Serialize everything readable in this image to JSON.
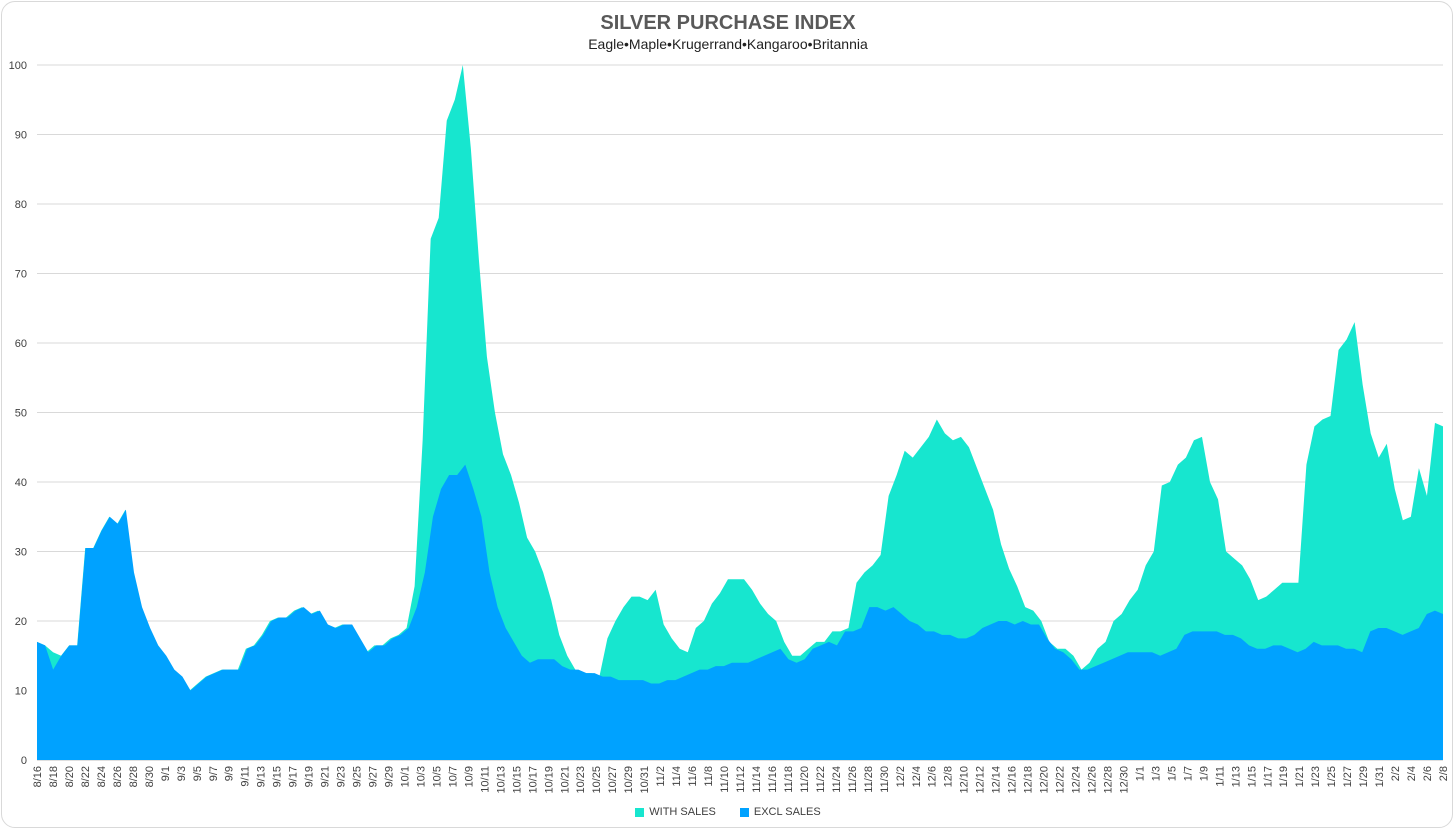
{
  "chart_data": {
    "type": "area",
    "title": "SILVER PURCHASE INDEX",
    "subtitle": "Eagle•Maple•Krugerrand•Kangaroo•Britannia",
    "ylim": [
      0,
      100
    ],
    "yticks": [
      0,
      10,
      20,
      30,
      40,
      50,
      60,
      70,
      80,
      90,
      100
    ],
    "grid": true,
    "legend_position": "bottom",
    "x_start": "8/16",
    "x_end": "2/8",
    "x_tick_labels": [
      "8/16",
      "8/18",
      "8/20",
      "8/22",
      "8/24",
      "8/26",
      "8/28",
      "8/30",
      "9/1",
      "9/3",
      "9/5",
      "9/7",
      "9/9",
      "9/11",
      "9/13",
      "9/15",
      "9/17",
      "9/19",
      "9/21",
      "9/23",
      "9/25",
      "9/27",
      "9/29",
      "10/1",
      "10/3",
      "10/5",
      "10/7",
      "10/9",
      "10/11",
      "10/13",
      "10/15",
      "10/17",
      "10/19",
      "10/21",
      "10/23",
      "10/25",
      "10/27",
      "10/29",
      "10/31",
      "11/2",
      "11/4",
      "11/6",
      "11/8",
      "11/10",
      "11/12",
      "11/14",
      "11/16",
      "11/18",
      "11/20",
      "11/22",
      "11/24",
      "11/26",
      "11/28",
      "11/30",
      "12/2",
      "12/4",
      "12/6",
      "12/8",
      "12/10",
      "12/12",
      "12/14",
      "12/16",
      "12/18",
      "12/20",
      "12/22",
      "12/24",
      "12/26",
      "12/28",
      "12/30",
      "1/1",
      "1/3",
      "1/5",
      "1/7",
      "1/9",
      "1/11",
      "1/13",
      "1/15",
      "1/17",
      "1/19",
      "1/21",
      "1/23",
      "1/25",
      "1/27",
      "1/29",
      "1/31",
      "2/2",
      "2/4",
      "2/6",
      "2/8"
    ],
    "series": [
      {
        "name": "WITH SALES",
        "color": "#17e6cf",
        "values": [
          17,
          16.5,
          15.5,
          15,
          16.5,
          16.5,
          30.5,
          30.5,
          33,
          35,
          34,
          36,
          27,
          22,
          19,
          16.5,
          15,
          13,
          12,
          10,
          11,
          12,
          12.5,
          13,
          13,
          13,
          16,
          16.5,
          18,
          20,
          20.5,
          20.5,
          21.5,
          22,
          21,
          21.5,
          19.5,
          19,
          19.5,
          19.5,
          17.5,
          15.5,
          16.5,
          16.5,
          17.5,
          18,
          19,
          25,
          46,
          75,
          78,
          92,
          95,
          100,
          88,
          72,
          58,
          50,
          44,
          41,
          37,
          32,
          30,
          27,
          23,
          18,
          15,
          13,
          12.5,
          12.5,
          12,
          17.5,
          20,
          22,
          23.5,
          23.5,
          23,
          24.5,
          19.5,
          17.5,
          16,
          15.5,
          19,
          20,
          22.5,
          24,
          26,
          26,
          26,
          24.5,
          22.5,
          21,
          20,
          17,
          15,
          15,
          16,
          17,
          17,
          18.5,
          18.5,
          19,
          25.5,
          27,
          28,
          29.5,
          38,
          41,
          44.5,
          43.5,
          45,
          46.5,
          49,
          47,
          46,
          46.5,
          45,
          42,
          39,
          36,
          31,
          27.5,
          25,
          22,
          21.5,
          20,
          17,
          16,
          16,
          15,
          13,
          14,
          16,
          17,
          20,
          21,
          23,
          24.5,
          28,
          30,
          39.5,
          40,
          42.5,
          43.5,
          46,
          46.5,
          40,
          37.5,
          30,
          29,
          28,
          26,
          23,
          23.5,
          24.5,
          25.5,
          25.5,
          25.5,
          42.5,
          48,
          49,
          49.5,
          59,
          60.5,
          63,
          54,
          47,
          43.5,
          45.5,
          39,
          34.5,
          35,
          42,
          38,
          48.5,
          48
        ]
      },
      {
        "name": "EXCL SALES",
        "color": "#00a2ff",
        "values": [
          17,
          16.5,
          13,
          15,
          16.5,
          16.5,
          30.5,
          30.5,
          33,
          35,
          34,
          36,
          27,
          22,
          19,
          16.5,
          15,
          13,
          12,
          10,
          11,
          12,
          12.5,
          13,
          13,
          13,
          16,
          16.5,
          18,
          20,
          20.5,
          20.5,
          21.5,
          22,
          21,
          21.5,
          19.5,
          19,
          19.5,
          19.5,
          17.5,
          15.5,
          16.5,
          16.5,
          17.5,
          18,
          19,
          22,
          27,
          35,
          39,
          41,
          41,
          42.5,
          39,
          35,
          27,
          22,
          19,
          17,
          15,
          14,
          14.5,
          14.5,
          14.5,
          13.5,
          13,
          13,
          12.5,
          12.5,
          12,
          12,
          11.5,
          11.5,
          11.5,
          11.5,
          11,
          11,
          11.5,
          11.5,
          12,
          12.5,
          13,
          13,
          13.5,
          13.5,
          14,
          14,
          14,
          14.5,
          15,
          15.5,
          16,
          14.5,
          14,
          14.5,
          16,
          16.5,
          17,
          16.5,
          18.5,
          18.5,
          19,
          22,
          22,
          21.5,
          22,
          21,
          20,
          19.5,
          18.5,
          18.5,
          18,
          18,
          17.5,
          17.5,
          18,
          19,
          19.5,
          20,
          20,
          19.5,
          20,
          19.5,
          19.5,
          17.5,
          16,
          15.5,
          14.5,
          13,
          13,
          13.5,
          14,
          14.5,
          15,
          15.5,
          15.5,
          15.5,
          15.5,
          15,
          15.5,
          16,
          18,
          18.5,
          18.5,
          18.5,
          18.5,
          18,
          18,
          17.5,
          16.5,
          16,
          16,
          16.5,
          16.5,
          16,
          15.5,
          16,
          17,
          16.5,
          16.5,
          16.5,
          16,
          16,
          15.5,
          18.5,
          19,
          19,
          18.5,
          18,
          18.5,
          19,
          21,
          21.5,
          21
        ]
      }
    ]
  }
}
